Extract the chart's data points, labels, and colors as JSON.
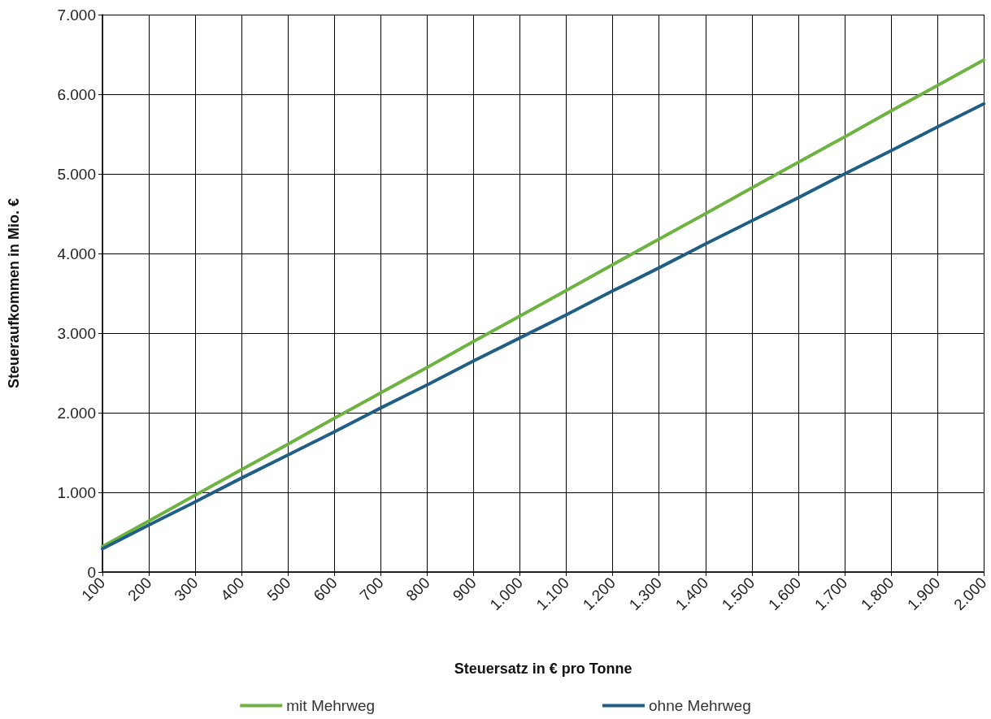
{
  "chart_data": {
    "type": "line",
    "xlabel": "Steuersatz in € pro Tonne",
    "ylabel": "Steueraufkommen in Mio. €",
    "categories": [
      "100",
      "200",
      "300",
      "400",
      "500",
      "600",
      "700",
      "800",
      "900",
      "1.000",
      "1.100",
      "1.200",
      "1.300",
      "1.400",
      "1.500",
      "1.600",
      "1.700",
      "1.800",
      "1.900",
      "2.000"
    ],
    "series": [
      {
        "name": "mit Mehrweg",
        "color": "#6db33f",
        "values": [
          320,
          640,
          965,
          1285,
          1605,
          1930,
          2250,
          2570,
          2895,
          3215,
          3535,
          3860,
          4180,
          4500,
          4825,
          5145,
          5465,
          5790,
          6110,
          6430
        ]
      },
      {
        "name": "ohne Mehrweg",
        "color": "#1f5f86",
        "values": [
          290,
          590,
          880,
          1180,
          1470,
          1760,
          2060,
          2350,
          2650,
          2940,
          3230,
          3530,
          3820,
          4120,
          4410,
          4700,
          5000,
          5290,
          5590,
          5880
        ]
      }
    ],
    "ylim": [
      0,
      7000
    ],
    "yticks": [
      0,
      {
        "value": 1000,
        "label": "1.000"
      },
      {
        "value": 2000,
        "label": "2.000"
      },
      {
        "value": 3000,
        "label": "3.000"
      },
      {
        "value": 4000,
        "label": "4.000"
      },
      {
        "value": 5000,
        "label": "5.000"
      },
      {
        "value": 6000,
        "label": "6.000"
      },
      {
        "value": 7000,
        "label": "7.000"
      }
    ],
    "grid": true,
    "legend": "bottom",
    "marker": "none",
    "line_style": "solid"
  }
}
